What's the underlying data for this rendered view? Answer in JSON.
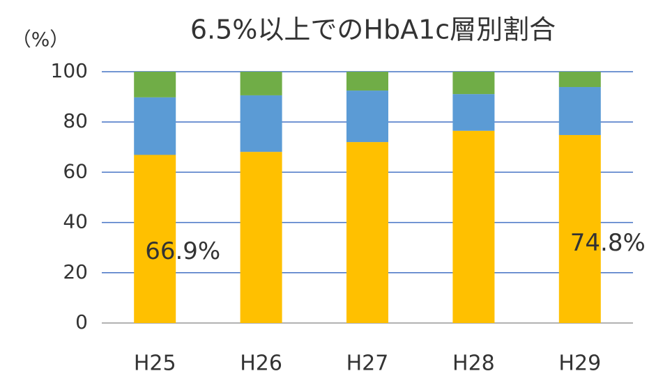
{
  "chart_data": {
    "type": "stacked_bar",
    "title": "6.5%以上でのHbA1c層別割合",
    "y_label": "（%）",
    "categories": [
      "H25",
      "H26",
      "H27",
      "H28",
      "H29"
    ],
    "series": [
      {
        "color": "#ffc000",
        "values": [
          66.9,
          68.1,
          72.0,
          76.5,
          74.8
        ],
        "value_labels": [
          "66.9%",
          null,
          null,
          null,
          "74.8%"
        ]
      },
      {
        "color": "#5b9bd5",
        "values": [
          22.9,
          22.5,
          20.5,
          14.6,
          19.1
        ]
      },
      {
        "color": "#70ad47",
        "values": [
          10.2,
          9.4,
          7.5,
          8.9,
          6.1
        ]
      }
    ],
    "ylim": [
      0,
      100
    ],
    "yticks": [
      0,
      20,
      40,
      60,
      80,
      100
    ],
    "grid": true
  }
}
